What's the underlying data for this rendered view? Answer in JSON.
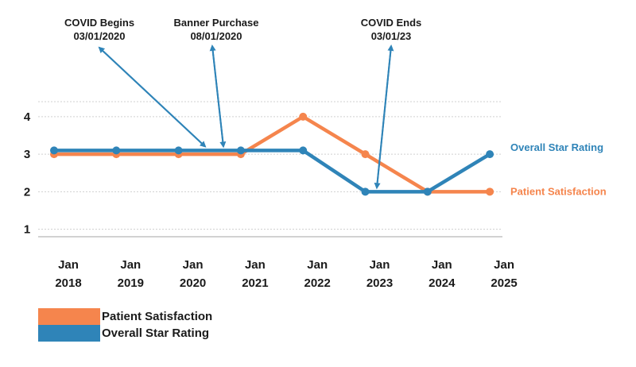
{
  "chart_data": {
    "type": "line",
    "x_labels": [
      [
        "Jan",
        "2018"
      ],
      [
        "Jan",
        "2019"
      ],
      [
        "Jan",
        "2020"
      ],
      [
        "Jan",
        "2021"
      ],
      [
        "Jan",
        "2022"
      ],
      [
        "Jan",
        "2023"
      ],
      [
        "Jan",
        "2024"
      ],
      [
        "Jan",
        "2025"
      ]
    ],
    "y_ticks": [
      1,
      2,
      3,
      4
    ],
    "ylim": [
      0.8,
      4.4
    ],
    "grid": true,
    "series": [
      {
        "name": "Overall Star Rating",
        "color": "#2f84b8",
        "values": [
          3.1,
          3.1,
          3.1,
          3.1,
          3.1,
          2.0,
          2.0,
          3.0
        ]
      },
      {
        "name": "Patient Satisfaction",
        "color": "#f5854d",
        "values": [
          3.0,
          3.0,
          3.0,
          3.0,
          4.0,
          3.0,
          2.0,
          2.0
        ]
      }
    ],
    "end_labels": [
      "Overall Star Rating",
      "Patient Satisfaction"
    ],
    "annotations": [
      {
        "line1": "COVID Begins",
        "line2": "03/01/2020"
      },
      {
        "line1": "Banner Purchase",
        "line2": "08/01/2020"
      },
      {
        "line1": "COVID Ends",
        "line2": "03/01/23"
      }
    ],
    "legend": [
      {
        "label": "Patient Satisfaction",
        "color": "#f5854d"
      },
      {
        "label": "Overall Star Rating",
        "color": "#2f84b8"
      }
    ],
    "legend_placement": "bottom-left"
  }
}
